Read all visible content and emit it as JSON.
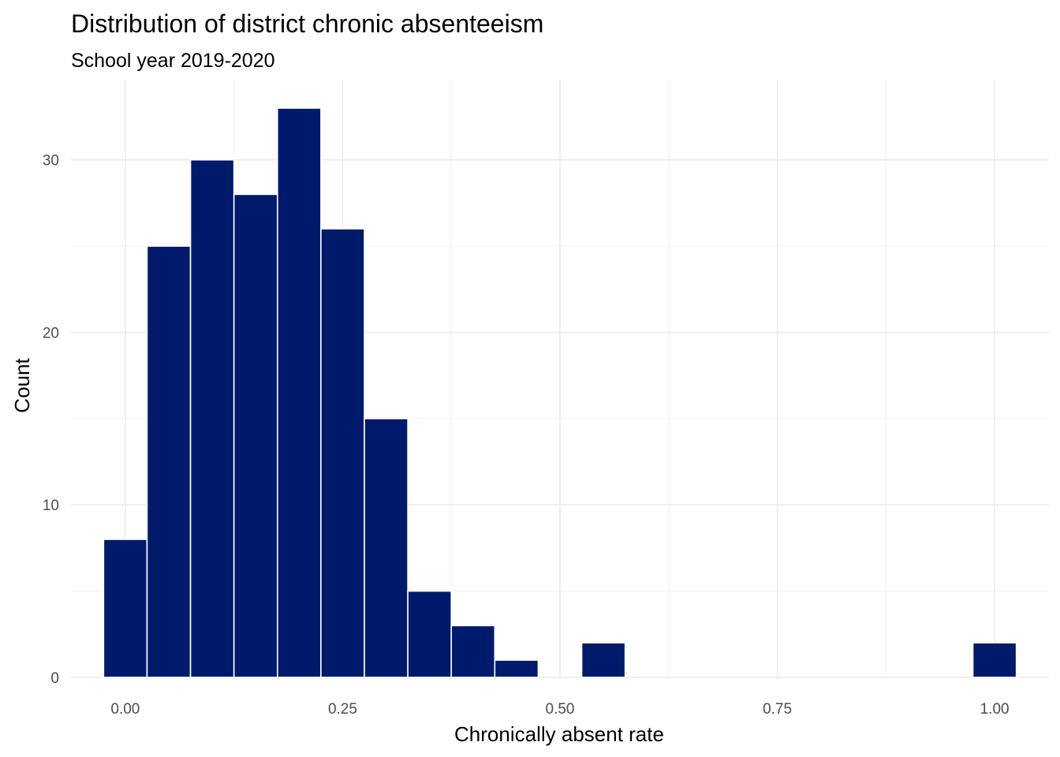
{
  "chart_data": {
    "type": "bar",
    "title": "Distribution of district chronic absenteeism",
    "subtitle": "School year 2019-2020",
    "xlabel": "Chronically absent rate",
    "ylabel": "Count",
    "bin_width": 0.05,
    "bins": [
      {
        "center": 0.0,
        "count": 8
      },
      {
        "center": 0.05,
        "count": 25
      },
      {
        "center": 0.1,
        "count": 30
      },
      {
        "center": 0.15,
        "count": 28
      },
      {
        "center": 0.2,
        "count": 33
      },
      {
        "center": 0.25,
        "count": 26
      },
      {
        "center": 0.3,
        "count": 15
      },
      {
        "center": 0.35,
        "count": 5
      },
      {
        "center": 0.4,
        "count": 3
      },
      {
        "center": 0.45,
        "count": 1
      },
      {
        "center": 0.55,
        "count": 2
      },
      {
        "center": 1.0,
        "count": 2
      }
    ],
    "xlim": [
      -0.0625,
      1.0625
    ],
    "ylim": [
      0,
      34.65
    ],
    "x_ticks": [
      0,
      0.25,
      0.5,
      0.75,
      1.0
    ],
    "x_tick_labels": [
      "0.00",
      "0.25",
      "0.50",
      "0.75",
      "1.00"
    ],
    "y_ticks": [
      0,
      10,
      20,
      30
    ],
    "y_tick_labels": [
      "0",
      "10",
      "20",
      "30"
    ],
    "bar_color": "#001a6b",
    "bar_outline": "#ffffff",
    "grid": true,
    "legend": "none"
  }
}
